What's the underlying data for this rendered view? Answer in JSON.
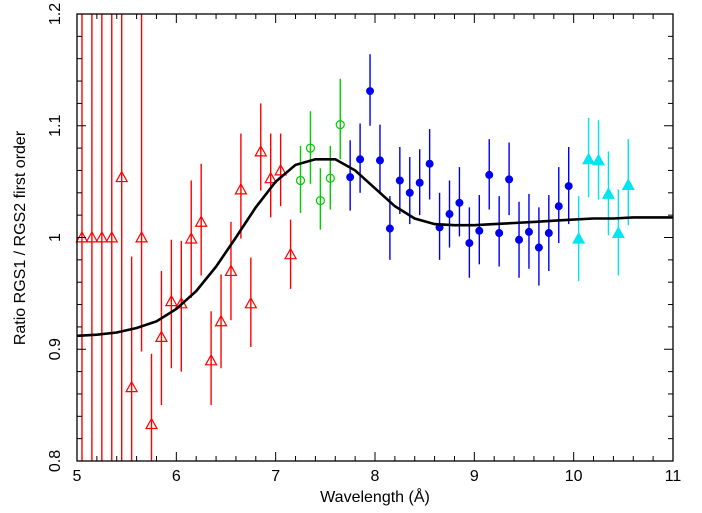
{
  "chart_data": {
    "type": "scatter",
    "title": "",
    "xlabel": "Wavelength (Å)",
    "ylabel": "Ratio RGS1 / RGS2 first order",
    "xlim": [
      5,
      11
    ],
    "ylim": [
      0.8,
      1.2
    ],
    "x_ticks": [
      "5",
      "6",
      "7",
      "8",
      "9",
      "10",
      "11"
    ],
    "y_ticks": [
      "0.8",
      "0.9",
      "1",
      "1.1",
      "1.2"
    ],
    "grid": false,
    "legend": "none",
    "series": [
      {
        "color": "#ff0000",
        "marker": "open-triangle",
        "points": [
          {
            "x": 5.05,
            "y": 1.0,
            "lo": 0.8,
            "hi": 1.2
          },
          {
            "x": 5.15,
            "y": 1.0,
            "lo": 0.8,
            "hi": 1.2
          },
          {
            "x": 5.25,
            "y": 1.0,
            "lo": 0.8,
            "hi": 1.2
          },
          {
            "x": 5.35,
            "y": 1.0,
            "lo": 0.8,
            "hi": 1.2
          },
          {
            "x": 5.45,
            "y": 1.054,
            "lo": 0.8,
            "hi": 1.2
          },
          {
            "x": 5.55,
            "y": 0.866,
            "lo": 0.8,
            "hi": 0.983
          },
          {
            "x": 5.65,
            "y": 1.0,
            "lo": 0.898,
            "hi": 1.2
          },
          {
            "x": 5.75,
            "y": 0.833,
            "lo": 0.8,
            "hi": 0.896
          },
          {
            "x": 5.85,
            "y": 0.911,
            "lo": 0.85,
            "hi": 0.97
          },
          {
            "x": 5.95,
            "y": 0.943,
            "lo": 0.883,
            "hi": 0.998
          },
          {
            "x": 6.05,
            "y": 0.941,
            "lo": 0.88,
            "hi": 0.997
          },
          {
            "x": 6.15,
            "y": 0.999,
            "lo": 0.946,
            "hi": 1.051
          },
          {
            "x": 6.25,
            "y": 1.014,
            "lo": 0.966,
            "hi": 1.066
          },
          {
            "x": 6.35,
            "y": 0.89,
            "lo": 0.85,
            "hi": 0.934
          },
          {
            "x": 6.45,
            "y": 0.925,
            "lo": 0.883,
            "hi": 0.967
          },
          {
            "x": 6.55,
            "y": 0.97,
            "lo": 0.926,
            "hi": 1.014
          },
          {
            "x": 6.65,
            "y": 1.043,
            "lo": 0.999,
            "hi": 1.093
          },
          {
            "x": 6.75,
            "y": 0.941,
            "lo": 0.902,
            "hi": 0.982
          },
          {
            "x": 6.85,
            "y": 1.077,
            "lo": 1.042,
            "hi": 1.12
          },
          {
            "x": 6.95,
            "y": 1.053,
            "lo": 1.018,
            "hi": 1.093
          },
          {
            "x": 7.05,
            "y": 1.06,
            "lo": 1.028,
            "hi": 1.093
          },
          {
            "x": 7.15,
            "y": 0.985,
            "lo": 0.954,
            "hi": 1.016
          }
        ]
      },
      {
        "color": "#00cc00",
        "marker": "open-circle",
        "points": [
          {
            "x": 7.25,
            "y": 1.051,
            "lo": 1.022,
            "hi": 1.082
          },
          {
            "x": 7.35,
            "y": 1.08,
            "lo": 1.048,
            "hi": 1.113
          },
          {
            "x": 7.45,
            "y": 1.033,
            "lo": 1.007,
            "hi": 1.062
          },
          {
            "x": 7.55,
            "y": 1.053,
            "lo": 1.025,
            "hi": 1.082
          },
          {
            "x": 7.65,
            "y": 1.101,
            "lo": 1.07,
            "hi": 1.142
          }
        ]
      },
      {
        "color": "#0000ee",
        "marker": "filled-circle",
        "points": [
          {
            "x": 7.75,
            "y": 1.054,
            "lo": 1.024,
            "hi": 1.087
          },
          {
            "x": 7.85,
            "y": 1.07,
            "lo": 1.04,
            "hi": 1.102
          },
          {
            "x": 7.95,
            "y": 1.131,
            "lo": 1.1,
            "hi": 1.164
          },
          {
            "x": 8.05,
            "y": 1.069,
            "lo": 1.04,
            "hi": 1.101
          },
          {
            "x": 8.15,
            "y": 1.008,
            "lo": 0.98,
            "hi": 1.037
          },
          {
            "x": 8.25,
            "y": 1.051,
            "lo": 1.021,
            "hi": 1.081
          },
          {
            "x": 8.35,
            "y": 1.04,
            "lo": 1.012,
            "hi": 1.072
          },
          {
            "x": 8.45,
            "y": 1.049,
            "lo": 1.02,
            "hi": 1.079
          },
          {
            "x": 8.55,
            "y": 1.066,
            "lo": 1.034,
            "hi": 1.097
          },
          {
            "x": 8.65,
            "y": 1.009,
            "lo": 0.98,
            "hi": 1.04
          },
          {
            "x": 8.75,
            "y": 1.021,
            "lo": 0.991,
            "hi": 1.051
          },
          {
            "x": 8.85,
            "y": 1.031,
            "lo": 1.001,
            "hi": 1.063
          },
          {
            "x": 8.95,
            "y": 0.995,
            "lo": 0.964,
            "hi": 1.027
          },
          {
            "x": 9.05,
            "y": 1.006,
            "lo": 0.976,
            "hi": 1.038
          },
          {
            "x": 9.15,
            "y": 1.056,
            "lo": 1.025,
            "hi": 1.088
          },
          {
            "x": 9.25,
            "y": 1.004,
            "lo": 0.974,
            "hi": 1.037
          },
          {
            "x": 9.35,
            "y": 1.052,
            "lo": 1.02,
            "hi": 1.085
          },
          {
            "x": 9.45,
            "y": 0.998,
            "lo": 0.964,
            "hi": 1.032
          },
          {
            "x": 9.55,
            "y": 1.005,
            "lo": 0.972,
            "hi": 1.039
          },
          {
            "x": 9.65,
            "y": 0.991,
            "lo": 0.957,
            "hi": 1.027
          },
          {
            "x": 9.75,
            "y": 1.004,
            "lo": 0.97,
            "hi": 1.038
          },
          {
            "x": 9.85,
            "y": 1.028,
            "lo": 0.995,
            "hi": 1.063
          },
          {
            "x": 9.95,
            "y": 1.046,
            "lo": 1.012,
            "hi": 1.081
          }
        ]
      },
      {
        "color": "#00e5ee",
        "marker": "filled-triangle",
        "points": [
          {
            "x": 10.05,
            "y": 0.999,
            "lo": 0.961,
            "hi": 1.037
          },
          {
            "x": 10.15,
            "y": 1.07,
            "lo": 1.036,
            "hi": 1.107
          },
          {
            "x": 10.25,
            "y": 1.069,
            "lo": 1.034,
            "hi": 1.105
          },
          {
            "x": 10.35,
            "y": 1.039,
            "lo": 1.002,
            "hi": 1.077
          },
          {
            "x": 10.45,
            "y": 1.004,
            "lo": 0.966,
            "hi": 1.043
          },
          {
            "x": 10.55,
            "y": 1.047,
            "lo": 1.011,
            "hi": 1.088
          }
        ]
      }
    ],
    "model_curve": {
      "color": "#000000",
      "x": [
        5.0,
        5.2,
        5.4,
        5.6,
        5.8,
        6.0,
        6.2,
        6.4,
        6.6,
        6.8,
        7.0,
        7.2,
        7.4,
        7.6,
        7.8,
        8.0,
        8.2,
        8.4,
        8.6,
        8.8,
        9.0,
        9.2,
        9.4,
        9.6,
        9.8,
        10.0,
        10.2,
        10.4,
        10.6,
        10.8,
        11.0
      ],
      "y": [
        0.912,
        0.913,
        0.915,
        0.919,
        0.925,
        0.936,
        0.952,
        0.974,
        1.0,
        1.027,
        1.05,
        1.065,
        1.07,
        1.07,
        1.06,
        1.044,
        1.028,
        1.017,
        1.012,
        1.011,
        1.011,
        1.012,
        1.013,
        1.014,
        1.015,
        1.016,
        1.017,
        1.017,
        1.018,
        1.018,
        1.018
      ]
    }
  }
}
